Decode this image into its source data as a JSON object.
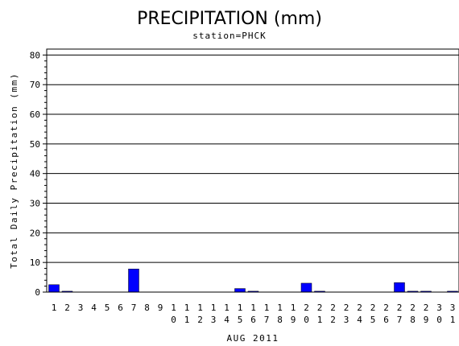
{
  "chart_data": {
    "type": "bar",
    "title": "PRECIPITATION (mm)",
    "subtitle": "station=PHCK",
    "xlabel": "AUG 2011",
    "ylabel": "Total Daily Precipitation (mm)",
    "ylim": [
      0,
      82
    ],
    "yticks": [
      "0",
      "10",
      "20",
      "30",
      "40",
      "50",
      "60",
      "70",
      "80"
    ],
    "grid": true,
    "bar_color": "#0000ff",
    "categories": [
      "1",
      "2",
      "3",
      "4",
      "5",
      "6",
      "7",
      "8",
      "9",
      "10",
      "11",
      "12",
      "13",
      "14",
      "15",
      "16",
      "17",
      "18",
      "19",
      "20",
      "21",
      "22",
      "23",
      "24",
      "25",
      "26",
      "27",
      "28",
      "29",
      "30",
      "31"
    ],
    "values": [
      2.5,
      0.3,
      0,
      0,
      0,
      0,
      7.8,
      0,
      0,
      0,
      0,
      0,
      0,
      0,
      1.2,
      0.3,
      0,
      0,
      0,
      3.0,
      0.3,
      0,
      0,
      0,
      0,
      0,
      3.2,
      0.3,
      0.3,
      0,
      0.3
    ]
  }
}
